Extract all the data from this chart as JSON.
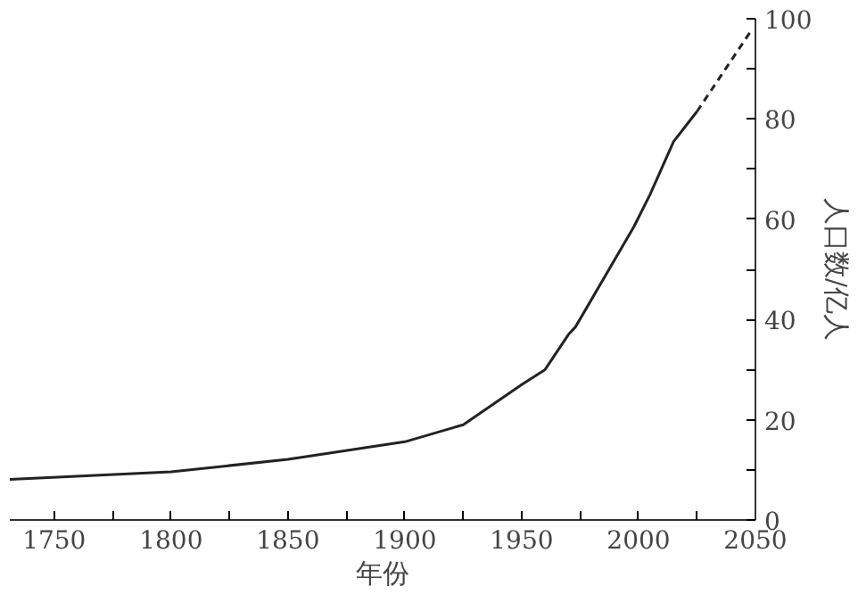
{
  "chart_data": {
    "type": "line",
    "xlabel": "年份",
    "ylabel": "人口数/亿人",
    "xlim": [
      1731,
      2050
    ],
    "ylim": [
      0,
      100
    ],
    "xticks": [
      1750,
      1800,
      1850,
      1900,
      1950,
      2000,
      2050,
      {
        "value": 1775,
        "label": null
      },
      {
        "value": 1825,
        "label": null
      },
      {
        "value": 1875,
        "label": null
      },
      {
        "value": 1925,
        "label": null
      },
      {
        "value": 1975,
        "label": null
      },
      {
        "value": 2025,
        "label": null
      }
    ],
    "yticks": [
      0,
      20,
      40,
      60,
      80,
      100,
      {
        "value": 10,
        "label": null
      },
      {
        "value": 30,
        "label": null
      },
      {
        "value": 50,
        "label": null
      },
      {
        "value": 70,
        "label": null
      },
      {
        "value": 90,
        "label": null
      }
    ],
    "grid": false,
    "series": [
      {
        "color": "#222222",
        "line_style": "solid",
        "x": [
          1731,
          1800,
          1850,
          1900,
          1925,
          1935,
          1950,
          1960,
          1970,
          1973,
          1998,
          2005,
          2015,
          2025
        ],
        "values": [
          8.1,
          9.6,
          12.1,
          15.6,
          19,
          22.2,
          27,
          30,
          37,
          38.5,
          58.5,
          65,
          75.5,
          81.5
        ]
      },
      {
        "color": "#222222",
        "line_style": "dashed",
        "x": [
          2025,
          2048
        ],
        "values": [
          81.5,
          97.5
        ]
      }
    ]
  }
}
